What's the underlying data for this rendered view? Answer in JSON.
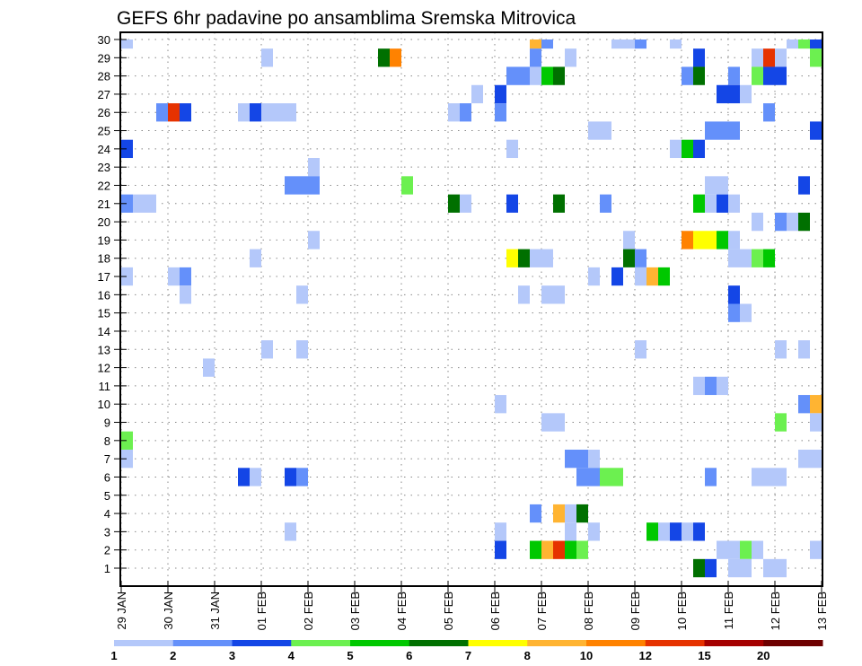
{
  "chart_data": {
    "type": "heatmap",
    "title": "GEFS 6hr padavine po ansamblima Sremska Mitrovica",
    "xlabel": "",
    "ylabel": "",
    "x_tick_labels": [
      "29 JAN",
      "30 JAN",
      "31 JAN",
      "01 FEB",
      "02 FEB",
      "03 FEB",
      "04 FEB",
      "05 FEB",
      "06 FEB",
      "07 FEB",
      "08 FEB",
      "09 FEB",
      "10 FEB",
      "11 FEB",
      "12 FEB",
      "13 FEB"
    ],
    "x_steps_per_day": 4,
    "n_steps": 60,
    "y_tick_labels": [
      "1",
      "2",
      "3",
      "4",
      "5",
      "6",
      "7",
      "8",
      "9",
      "10",
      "11",
      "12",
      "13",
      "14",
      "15",
      "16",
      "17",
      "18",
      "19",
      "20",
      "21",
      "22",
      "23",
      "24",
      "25",
      "26",
      "27",
      "28",
      "29",
      "30"
    ],
    "grid": true,
    "legend": {
      "placement": "bottom",
      "labels": [
        "1",
        "2",
        "3",
        "4",
        "5",
        "6",
        "7",
        "8",
        "10",
        "12",
        "15",
        "20"
      ],
      "colors": [
        "#b4c8fa",
        "#6490fa",
        "#1446e6",
        "#6cf050",
        "#00c800",
        "#007000",
        "#ffff00",
        "#ffb432",
        "#ff8200",
        "#e63200",
        "#a50000",
        "#6e0000"
      ]
    },
    "cells_format": "[time_step_index, member, color_class_index(1-12)]",
    "cells": [
      [
        0,
        30,
        1
      ],
      [
        35,
        30,
        8
      ],
      [
        36,
        30,
        2
      ],
      [
        42,
        30,
        1
      ],
      [
        43,
        30,
        1
      ],
      [
        44,
        30,
        2
      ],
      [
        47,
        30,
        1
      ],
      [
        57,
        30,
        1
      ],
      [
        58,
        30,
        4
      ],
      [
        59,
        30,
        3
      ],
      [
        12,
        29,
        1
      ],
      [
        22,
        29,
        6
      ],
      [
        23,
        29,
        9
      ],
      [
        35,
        29,
        2
      ],
      [
        38,
        29,
        1
      ],
      [
        49,
        29,
        3
      ],
      [
        54,
        29,
        1
      ],
      [
        55,
        29,
        10
      ],
      [
        56,
        29,
        1
      ],
      [
        59,
        29,
        4
      ],
      [
        33,
        28,
        2
      ],
      [
        34,
        28,
        2
      ],
      [
        35,
        28,
        1
      ],
      [
        36,
        28,
        5
      ],
      [
        37,
        28,
        6
      ],
      [
        48,
        28,
        2
      ],
      [
        49,
        28,
        6
      ],
      [
        52,
        28,
        2
      ],
      [
        54,
        28,
        4
      ],
      [
        55,
        28,
        3
      ],
      [
        56,
        28,
        3
      ],
      [
        30,
        27,
        1
      ],
      [
        32,
        27,
        3
      ],
      [
        51,
        27,
        3
      ],
      [
        52,
        27,
        3
      ],
      [
        53,
        27,
        1
      ],
      [
        3,
        26,
        2
      ],
      [
        4,
        26,
        10
      ],
      [
        5,
        26,
        3
      ],
      [
        10,
        26,
        1
      ],
      [
        11,
        26,
        3
      ],
      [
        12,
        26,
        1
      ],
      [
        13,
        26,
        1
      ],
      [
        14,
        26,
        1
      ],
      [
        28,
        26,
        1
      ],
      [
        29,
        26,
        2
      ],
      [
        32,
        26,
        2
      ],
      [
        55,
        26,
        2
      ],
      [
        40,
        25,
        1
      ],
      [
        41,
        25,
        1
      ],
      [
        50,
        25,
        2
      ],
      [
        51,
        25,
        2
      ],
      [
        52,
        25,
        2
      ],
      [
        59,
        25,
        3
      ],
      [
        0,
        24,
        3
      ],
      [
        33,
        24,
        1
      ],
      [
        47,
        24,
        1
      ],
      [
        48,
        24,
        5
      ],
      [
        49,
        24,
        3
      ],
      [
        16,
        23,
        1
      ],
      [
        14,
        22,
        2
      ],
      [
        15,
        22,
        2
      ],
      [
        16,
        22,
        2
      ],
      [
        24,
        22,
        4
      ],
      [
        50,
        22,
        1
      ],
      [
        51,
        22,
        1
      ],
      [
        58,
        22,
        3
      ],
      [
        0,
        21,
        2
      ],
      [
        1,
        21,
        1
      ],
      [
        2,
        21,
        1
      ],
      [
        28,
        21,
        6
      ],
      [
        29,
        21,
        1
      ],
      [
        33,
        21,
        3
      ],
      [
        37,
        21,
        6
      ],
      [
        41,
        21,
        2
      ],
      [
        49,
        21,
        5
      ],
      [
        50,
        21,
        1
      ],
      [
        51,
        21,
        3
      ],
      [
        52,
        21,
        1
      ],
      [
        54,
        20,
        1
      ],
      [
        56,
        20,
        2
      ],
      [
        57,
        20,
        1
      ],
      [
        58,
        20,
        6
      ],
      [
        16,
        19,
        1
      ],
      [
        43,
        19,
        1
      ],
      [
        48,
        19,
        9
      ],
      [
        49,
        19,
        7
      ],
      [
        50,
        19,
        7
      ],
      [
        51,
        19,
        5
      ],
      [
        52,
        19,
        1
      ],
      [
        11,
        18,
        1
      ],
      [
        33,
        18,
        7
      ],
      [
        34,
        18,
        6
      ],
      [
        35,
        18,
        1
      ],
      [
        36,
        18,
        1
      ],
      [
        43,
        18,
        6
      ],
      [
        44,
        18,
        2
      ],
      [
        52,
        18,
        1
      ],
      [
        53,
        18,
        1
      ],
      [
        54,
        18,
        4
      ],
      [
        55,
        18,
        5
      ],
      [
        0,
        17,
        1
      ],
      [
        4,
        17,
        1
      ],
      [
        5,
        17,
        2
      ],
      [
        40,
        17,
        1
      ],
      [
        42,
        17,
        3
      ],
      [
        44,
        17,
        1
      ],
      [
        45,
        17,
        8
      ],
      [
        46,
        17,
        5
      ],
      [
        5,
        16,
        1
      ],
      [
        15,
        16,
        1
      ],
      [
        34,
        16,
        1
      ],
      [
        36,
        16,
        1
      ],
      [
        37,
        16,
        1
      ],
      [
        52,
        16,
        3
      ],
      [
        52,
        15,
        2
      ],
      [
        53,
        15,
        1
      ],
      [
        12,
        13,
        1
      ],
      [
        15,
        13,
        1
      ],
      [
        44,
        13,
        1
      ],
      [
        56,
        13,
        1
      ],
      [
        58,
        13,
        1
      ],
      [
        7,
        12,
        1
      ],
      [
        49,
        11,
        1
      ],
      [
        50,
        11,
        2
      ],
      [
        51,
        11,
        1
      ],
      [
        32,
        10,
        1
      ],
      [
        58,
        10,
        2
      ],
      [
        59,
        10,
        8
      ],
      [
        36,
        9,
        1
      ],
      [
        37,
        9,
        1
      ],
      [
        56,
        9,
        4
      ],
      [
        59,
        9,
        1
      ],
      [
        0,
        8,
        4
      ],
      [
        0,
        7,
        1
      ],
      [
        38,
        7,
        2
      ],
      [
        39,
        7,
        2
      ],
      [
        40,
        7,
        1
      ],
      [
        58,
        7,
        1
      ],
      [
        59,
        7,
        1
      ],
      [
        10,
        6,
        3
      ],
      [
        11,
        6,
        1
      ],
      [
        14,
        6,
        3
      ],
      [
        15,
        6,
        2
      ],
      [
        39,
        6,
        2
      ],
      [
        40,
        6,
        2
      ],
      [
        41,
        6,
        4
      ],
      [
        42,
        6,
        4
      ],
      [
        50,
        6,
        2
      ],
      [
        54,
        6,
        1
      ],
      [
        55,
        6,
        1
      ],
      [
        56,
        6,
        1
      ],
      [
        35,
        4,
        2
      ],
      [
        37,
        4,
        8
      ],
      [
        38,
        4,
        1
      ],
      [
        39,
        4,
        6
      ],
      [
        14,
        3,
        1
      ],
      [
        32,
        3,
        1
      ],
      [
        38,
        3,
        1
      ],
      [
        40,
        3,
        1
      ],
      [
        45,
        3,
        5
      ],
      [
        46,
        3,
        1
      ],
      [
        47,
        3,
        3
      ],
      [
        48,
        3,
        1
      ],
      [
        49,
        3,
        3
      ],
      [
        32,
        2,
        3
      ],
      [
        35,
        2,
        5
      ],
      [
        36,
        2,
        8
      ],
      [
        37,
        2,
        10
      ],
      [
        38,
        2,
        5
      ],
      [
        39,
        2,
        4
      ],
      [
        51,
        2,
        1
      ],
      [
        52,
        2,
        1
      ],
      [
        53,
        2,
        4
      ],
      [
        54,
        2,
        1
      ],
      [
        59,
        2,
        1
      ],
      [
        49,
        1,
        6
      ],
      [
        50,
        1,
        3
      ],
      [
        52,
        1,
        1
      ],
      [
        53,
        1,
        1
      ],
      [
        55,
        1,
        1
      ],
      [
        56,
        1,
        1
      ]
    ]
  }
}
